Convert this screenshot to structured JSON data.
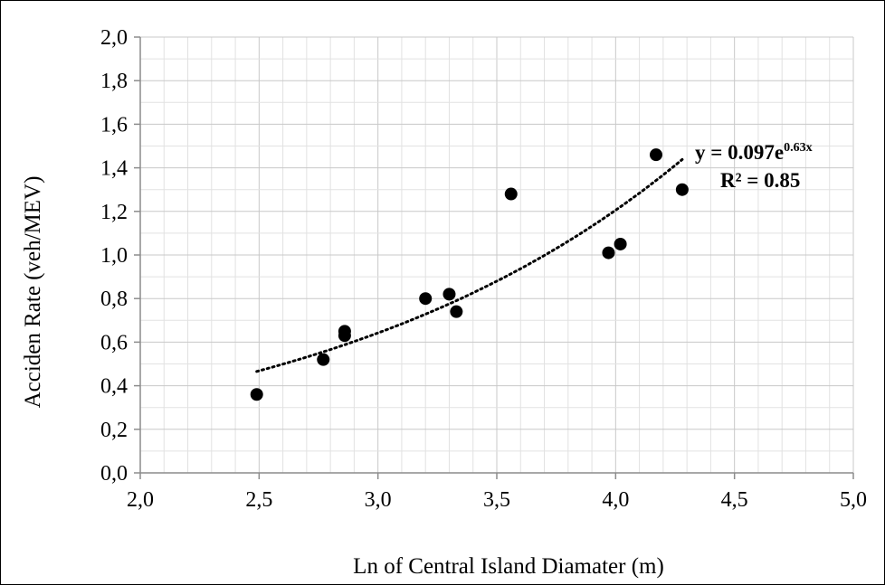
{
  "chart_data": {
    "type": "scatter",
    "xlabel": "Ln of Central Island Diamater (m)",
    "ylabel": "Acciden Rate (veh/MEV)",
    "xlim": [
      2.0,
      5.0
    ],
    "ylim": [
      0.0,
      2.0
    ],
    "x_ticks": [
      "2,0",
      "2,5",
      "3,0",
      "3,5",
      "4,0",
      "4,5",
      "5,0"
    ],
    "y_ticks": [
      "0,0",
      "0,2",
      "0,4",
      "0,6",
      "0,8",
      "1,0",
      "1,2",
      "1,4",
      "1,6",
      "1,8",
      "2,0"
    ],
    "x_tick_values": [
      2.0,
      2.5,
      3.0,
      3.5,
      4.0,
      4.5,
      5.0
    ],
    "y_tick_values": [
      0.0,
      0.2,
      0.4,
      0.6,
      0.8,
      1.0,
      1.2,
      1.4,
      1.6,
      1.8,
      2.0
    ],
    "x_minor_step": 0.1,
    "y_minor_step": 0.1,
    "grid": true,
    "points": [
      {
        "x": 2.49,
        "y": 0.36
      },
      {
        "x": 2.77,
        "y": 0.52
      },
      {
        "x": 2.86,
        "y": 0.65
      },
      {
        "x": 2.86,
        "y": 0.63
      },
      {
        "x": 3.2,
        "y": 0.8
      },
      {
        "x": 3.3,
        "y": 0.82
      },
      {
        "x": 3.33,
        "y": 0.74
      },
      {
        "x": 3.56,
        "y": 1.28
      },
      {
        "x": 3.97,
        "y": 1.01
      },
      {
        "x": 4.02,
        "y": 1.05
      },
      {
        "x": 4.17,
        "y": 1.46
      },
      {
        "x": 4.28,
        "y": 1.3
      }
    ],
    "trendline": {
      "type": "exponential",
      "a": 0.097,
      "b": 0.63,
      "x_range": [
        2.49,
        4.28
      ],
      "style": "dotted"
    },
    "annotation": {
      "equation_prefix": "y = 0.097e",
      "equation_exponent": "0.63x",
      "r_squared": "R² = 0.85"
    }
  }
}
